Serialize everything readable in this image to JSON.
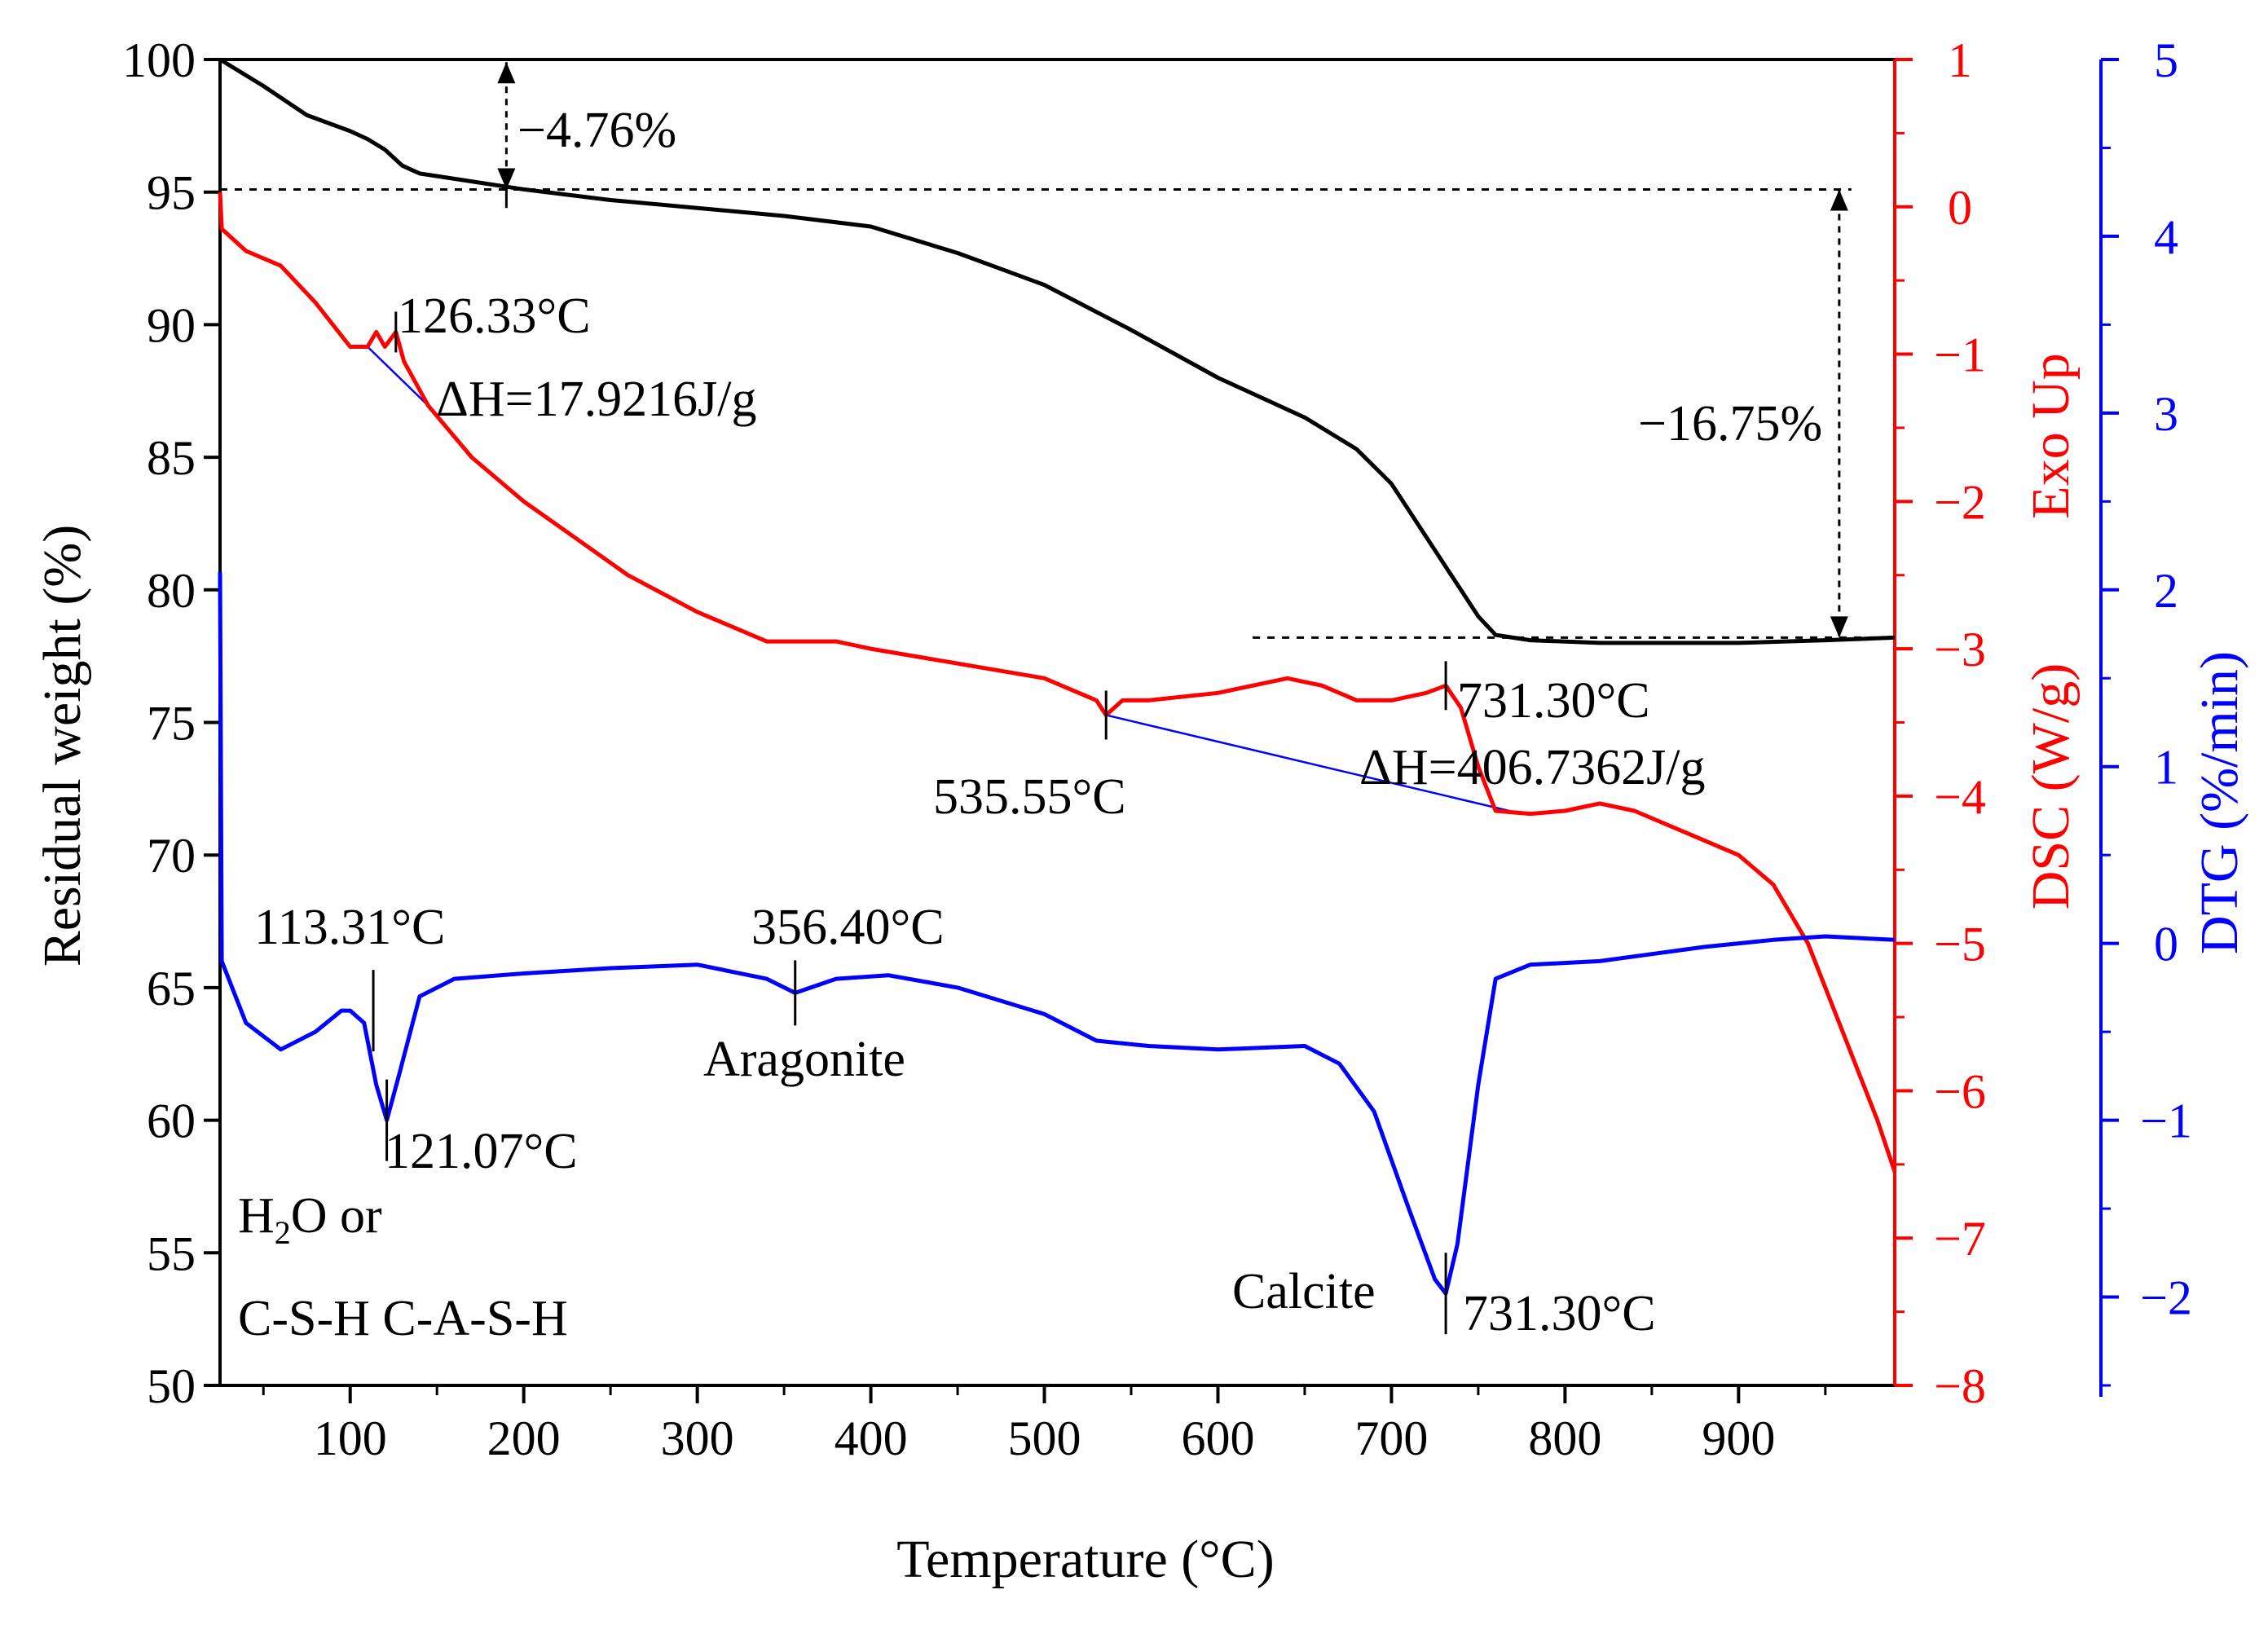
{
  "colors": {
    "tg": "#000000",
    "dsc": "#ff0000",
    "dtg": "#0000ff",
    "baseline": "#0000ff"
  },
  "chart_data": {
    "type": "line",
    "xlabel": "Temperature (°C)",
    "xlim": [
      25,
      990
    ],
    "x_ticks": [
      100,
      200,
      300,
      400,
      500,
      600,
      700,
      800,
      900
    ],
    "axes": {
      "tg": {
        "label": "Residual weight (%)",
        "lim": [
          50,
          100
        ],
        "ticks": [
          50,
          55,
          60,
          65,
          70,
          75,
          80,
          85,
          90,
          95,
          100
        ]
      },
      "dsc": {
        "label": "DSC (W/g)",
        "sublabel": "Exo Up",
        "lim": [
          -8,
          1
        ],
        "ticks": [
          -8,
          -7,
          -6,
          -5,
          -4,
          -3,
          -2,
          -1,
          0,
          1
        ],
        "tick_labels": [
          "−8",
          "−7",
          "−6",
          "−5",
          "−4",
          "−3",
          "−2",
          "−1",
          "0",
          "1"
        ]
      },
      "dtg": {
        "label": "DTG (%/min)",
        "lim": [
          -2.5,
          5
        ],
        "ticks": [
          -2,
          -1,
          0,
          1,
          2,
          3,
          4,
          5
        ],
        "tick_labels": [
          "−2",
          "−1",
          "0",
          "1",
          "2",
          "3",
          "4",
          "5"
        ]
      }
    },
    "series": [
      {
        "name": "TG",
        "axis": "tg",
        "color": "#000000",
        "points": [
          [
            25,
            100
          ],
          [
            50,
            99
          ],
          [
            75,
            97.9
          ],
          [
            100,
            97.3
          ],
          [
            110,
            97
          ],
          [
            120,
            96.6
          ],
          [
            130,
            96
          ],
          [
            140,
            95.7
          ],
          [
            160,
            95.5
          ],
          [
            200,
            95.1
          ],
          [
            250,
            94.7
          ],
          [
            300,
            94.4
          ],
          [
            350,
            94.1
          ],
          [
            400,
            93.7
          ],
          [
            450,
            92.7
          ],
          [
            500,
            91.5
          ],
          [
            550,
            89.8
          ],
          [
            600,
            88
          ],
          [
            650,
            86.5
          ],
          [
            680,
            85.3
          ],
          [
            700,
            84
          ],
          [
            720,
            82
          ],
          [
            740,
            80
          ],
          [
            750,
            79
          ],
          [
            760,
            78.3
          ],
          [
            780,
            78.1
          ],
          [
            820,
            78
          ],
          [
            900,
            78
          ],
          [
            950,
            78.1
          ],
          [
            990,
            78.2
          ]
        ]
      },
      {
        "name": "DSC",
        "axis": "dsc",
        "color": "#ff0000",
        "points": [
          [
            25,
            0.1
          ],
          [
            26,
            -0.15
          ],
          [
            40,
            -0.3
          ],
          [
            60,
            -0.4
          ],
          [
            80,
            -0.65
          ],
          [
            100,
            -0.95
          ],
          [
            110,
            -0.95
          ],
          [
            115,
            -0.85
          ],
          [
            120,
            -0.95
          ],
          [
            126.33,
            -0.85
          ],
          [
            131,
            -1.05
          ],
          [
            145,
            -1.35
          ],
          [
            170,
            -1.7
          ],
          [
            200,
            -2.0
          ],
          [
            230,
            -2.25
          ],
          [
            260,
            -2.5
          ],
          [
            300,
            -2.75
          ],
          [
            340,
            -2.95
          ],
          [
            360,
            -2.95
          ],
          [
            380,
            -2.95
          ],
          [
            400,
            -3.0
          ],
          [
            450,
            -3.1
          ],
          [
            500,
            -3.2
          ],
          [
            530,
            -3.35
          ],
          [
            535.55,
            -3.45
          ],
          [
            545,
            -3.35
          ],
          [
            560,
            -3.35
          ],
          [
            600,
            -3.3
          ],
          [
            640,
            -3.2
          ],
          [
            660,
            -3.25
          ],
          [
            680,
            -3.35
          ],
          [
            700,
            -3.35
          ],
          [
            720,
            -3.3
          ],
          [
            731.3,
            -3.25
          ],
          [
            740,
            -3.4
          ],
          [
            750,
            -3.8
          ],
          [
            760,
            -4.1
          ],
          [
            780,
            -4.12
          ],
          [
            800,
            -4.1
          ],
          [
            820,
            -4.05
          ],
          [
            840,
            -4.1
          ],
          [
            870,
            -4.25
          ],
          [
            900,
            -4.4
          ],
          [
            920,
            -4.6
          ],
          [
            940,
            -5.0
          ],
          [
            960,
            -5.6
          ],
          [
            980,
            -6.2
          ],
          [
            990,
            -6.55
          ]
        ]
      },
      {
        "name": "DTG",
        "axis": "dtg",
        "color": "#0000ff",
        "points": [
          [
            25,
            2.1
          ],
          [
            26,
            -0.1
          ],
          [
            40,
            -0.45
          ],
          [
            60,
            -0.6
          ],
          [
            80,
            -0.5
          ],
          [
            95,
            -0.38
          ],
          [
            100,
            -0.38
          ],
          [
            108,
            -0.45
          ],
          [
            115,
            -0.8
          ],
          [
            121.07,
            -1.0
          ],
          [
            128,
            -0.75
          ],
          [
            140,
            -0.3
          ],
          [
            160,
            -0.2
          ],
          [
            200,
            -0.17
          ],
          [
            250,
            -0.14
          ],
          [
            300,
            -0.12
          ],
          [
            340,
            -0.2
          ],
          [
            356.4,
            -0.28
          ],
          [
            380,
            -0.2
          ],
          [
            410,
            -0.18
          ],
          [
            450,
            -0.25
          ],
          [
            500,
            -0.4
          ],
          [
            530,
            -0.55
          ],
          [
            560,
            -0.58
          ],
          [
            600,
            -0.6
          ],
          [
            650,
            -0.58
          ],
          [
            670,
            -0.68
          ],
          [
            690,
            -0.95
          ],
          [
            710,
            -1.5
          ],
          [
            725,
            -1.9
          ],
          [
            731.3,
            -1.98
          ],
          [
            738,
            -1.7
          ],
          [
            750,
            -0.8
          ],
          [
            760,
            -0.2
          ],
          [
            780,
            -0.12
          ],
          [
            820,
            -0.1
          ],
          [
            850,
            -0.06
          ],
          [
            880,
            -0.02
          ],
          [
            920,
            0.02
          ],
          [
            950,
            0.04
          ],
          [
            990,
            0.02
          ]
        ]
      }
    ],
    "baselines": [
      {
        "name": "DSC baseline 1",
        "points": [
          [
            110,
            -0.95
          ],
          [
            145,
            -1.35
          ]
        ]
      },
      {
        "name": "DSC baseline 2",
        "points": [
          [
            535.55,
            -3.45
          ],
          [
            775,
            -4.12
          ]
        ]
      }
    ],
    "reference_lines": [
      {
        "name": "TG level ref 1",
        "y": 95.1,
        "x_from": 25,
        "x_to": 965
      },
      {
        "name": "TG level ref 2",
        "y": 78.2,
        "x_from": 620,
        "x_to": 990
      }
    ],
    "annotations": {
      "tg_loss_1": "−4.76%",
      "tg_loss_2": "−16.75%",
      "dsc_peak_1": "126.33°C",
      "dsc_dh_1": "ΔH=17.9216J/g",
      "dsc_peak_2": "535.55°C",
      "dsc_peak_3": "731.30°C",
      "dsc_dh_2": "ΔH=406.7362J/g",
      "dtg_peak_1": "113.31°C",
      "dtg_peak_2": "121.07°C",
      "dtg_peak_3": "356.40°C",
      "dtg_peak_4": "731.30°C",
      "label_aragonite": "Aragonite",
      "label_calcite": "Calcite",
      "label_h2o_pre": "H",
      "label_h2o_sub": "2",
      "label_h2o_post": "O or",
      "label_csh": "C-S-H C-A-S-H"
    }
  }
}
